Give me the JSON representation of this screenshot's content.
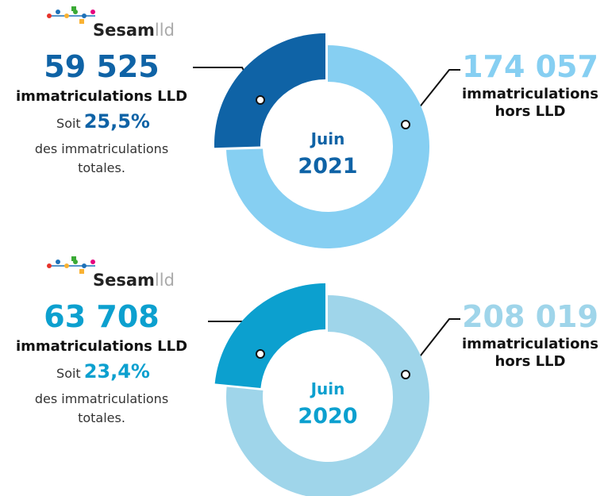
{
  "chart_data": [
    {
      "type": "donut",
      "logo": {
        "brand": "Sesam",
        "suffix": "lld"
      },
      "month": "Juin",
      "year": "2021",
      "categories": [
        "immatriculations LLD",
        "immatriculations hors LLD"
      ],
      "values": [
        59525,
        174057
      ],
      "value_labels": [
        "59 525",
        "174 057"
      ],
      "colors": [
        "#0f63a6",
        "#86cff2"
      ],
      "label_colors": [
        "#0f63a6",
        "#86cff2"
      ],
      "share_intro": "Soit",
      "share": {
        "value": 25.5,
        "label": "25,5%"
      },
      "share_text": [
        "des immatriculations",
        "totales."
      ]
    },
    {
      "type": "donut",
      "logo": {
        "brand": "Sesam",
        "suffix": "lld"
      },
      "month": "Juin",
      "year": "2020",
      "categories": [
        "immatriculations LLD",
        "immatriculations hors LLD"
      ],
      "values": [
        63708,
        208019
      ],
      "value_labels": [
        "63 708",
        "208 019"
      ],
      "colors": [
        "#0ca0cf",
        "#9fd5ea"
      ],
      "label_colors": [
        "#0ca0cf",
        "#9fd5ea"
      ],
      "share_intro": "Soit",
      "share": {
        "value": 23.4,
        "label": "23,4%"
      },
      "share_text": [
        "des immatriculations",
        "totales."
      ]
    }
  ]
}
